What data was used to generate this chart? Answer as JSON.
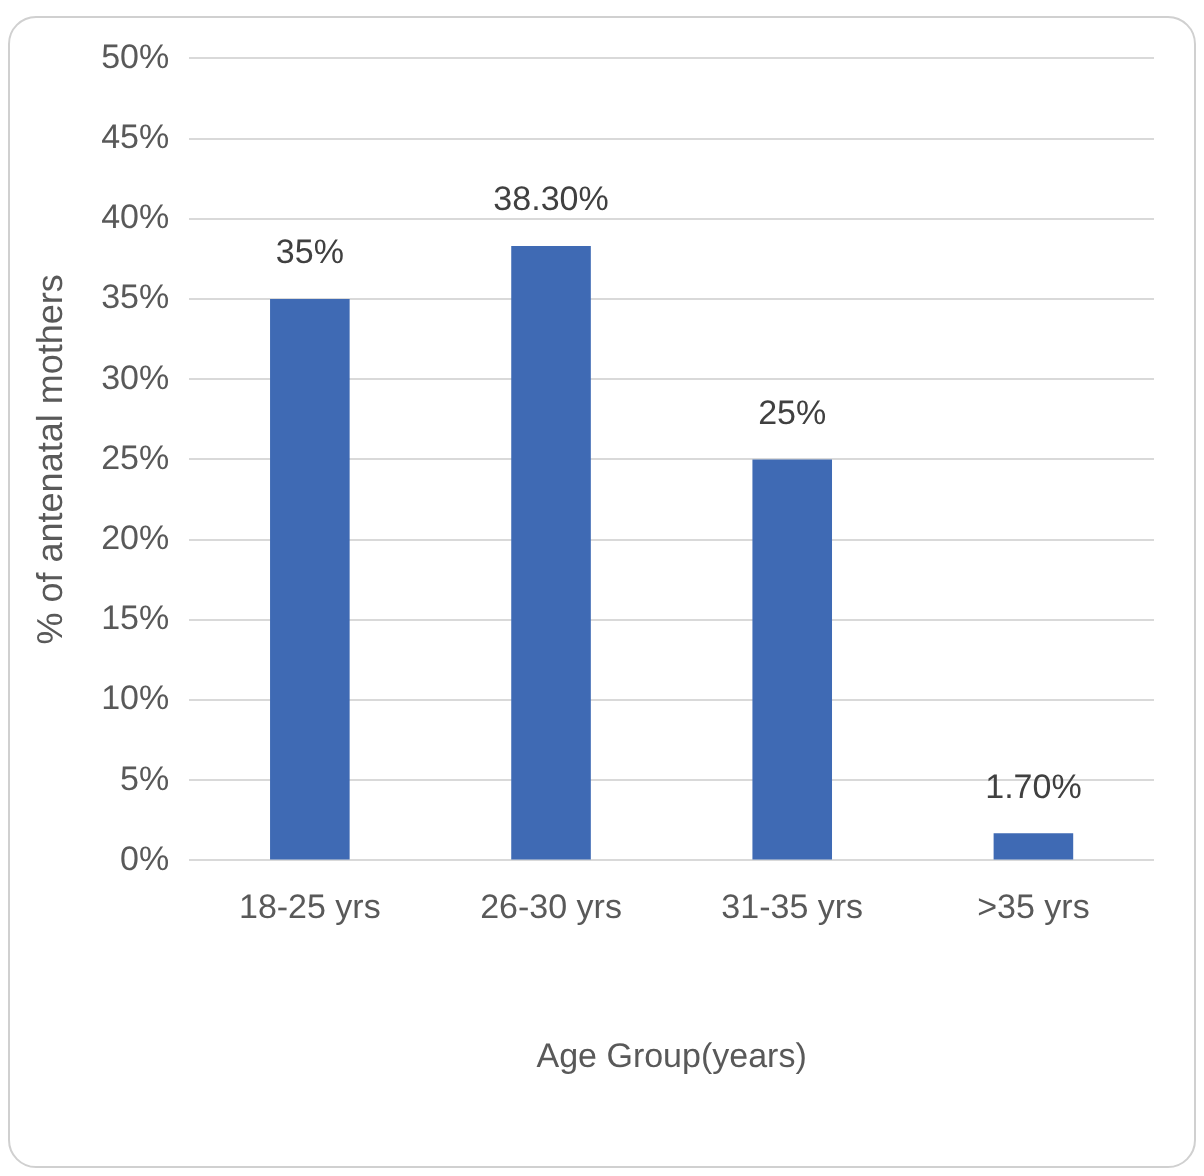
{
  "chart_data": {
    "type": "bar",
    "xlabel": "Age Group(years)",
    "ylabel": "% of antenatal mothers",
    "categories": [
      "18-25 yrs",
      "26-30 yrs",
      "31-35 yrs",
      ">35 yrs"
    ],
    "values": [
      35,
      38.3,
      25,
      1.7
    ],
    "color": "#3f6ab4",
    "value_labels": [
      "35%",
      "38.30%",
      "25%",
      "1.70%"
    ],
    "ylim": [
      0,
      50
    ],
    "yticks": [
      {
        "value": 0,
        "label": "0%"
      },
      {
        "value": 5,
        "label": "5%"
      },
      {
        "value": 10,
        "label": "10%"
      },
      {
        "value": 15,
        "label": "15%"
      },
      {
        "value": 20,
        "label": "20%"
      },
      {
        "value": 25,
        "label": "25%"
      },
      {
        "value": 30,
        "label": "30%"
      },
      {
        "value": 35,
        "label": "35%"
      },
      {
        "value": 40,
        "label": "40%"
      },
      {
        "value": 45,
        "label": "45%"
      },
      {
        "value": 50,
        "label": "50%"
      }
    ],
    "grid": "y"
  }
}
